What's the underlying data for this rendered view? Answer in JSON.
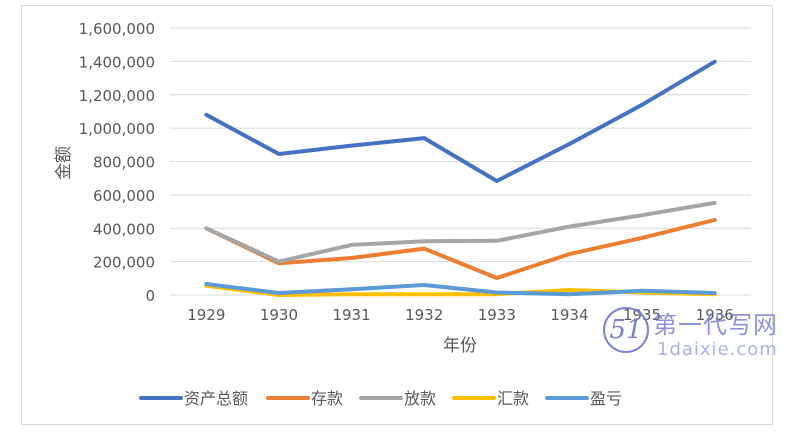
{
  "chart_data": {
    "type": "line",
    "title": "",
    "xlabel": "年份",
    "ylabel": "金额",
    "ylim": [
      0,
      1600000
    ],
    "yticks": [
      0,
      200000,
      400000,
      600000,
      800000,
      1000000,
      1200000,
      1400000,
      1600000
    ],
    "ytick_labels": [
      "0",
      "200,000",
      "400,000",
      "600,000",
      "800,000",
      "1,000,000",
      "1,200,000",
      "1,400,000",
      "1,600,000"
    ],
    "categories": [
      "1929",
      "1930",
      "1931",
      "1932",
      "1933",
      "1934",
      "1935",
      "1936"
    ],
    "grid": true,
    "legend_position": "bottom",
    "series": [
      {
        "name": "资产总额",
        "color": "#4472C4",
        "values": [
          1080000,
          845000,
          895000,
          940000,
          683000,
          905000,
          1140000,
          1398000
        ]
      },
      {
        "name": "存款",
        "color": "#ED7D31",
        "values": [
          400000,
          190000,
          222000,
          278000,
          102000,
          245000,
          342000,
          450000
        ]
      },
      {
        "name": "放款",
        "color": "#A5A5A5",
        "values": [
          400000,
          200000,
          300000,
          322000,
          325000,
          410000,
          478000,
          552000
        ]
      },
      {
        "name": "汇款",
        "color": "#FFC000",
        "values": [
          55000,
          0,
          5000,
          5000,
          5000,
          30000,
          15000,
          5000
        ]
      },
      {
        "name": "盈亏",
        "color": "#5B9BD5",
        "values": [
          66000,
          12000,
          35000,
          60000,
          15000,
          5000,
          25000,
          12000
        ]
      }
    ]
  },
  "watermark": {
    "logo": "51",
    "text_cn": "第一代写网",
    "text_en": "1daixie.com"
  }
}
